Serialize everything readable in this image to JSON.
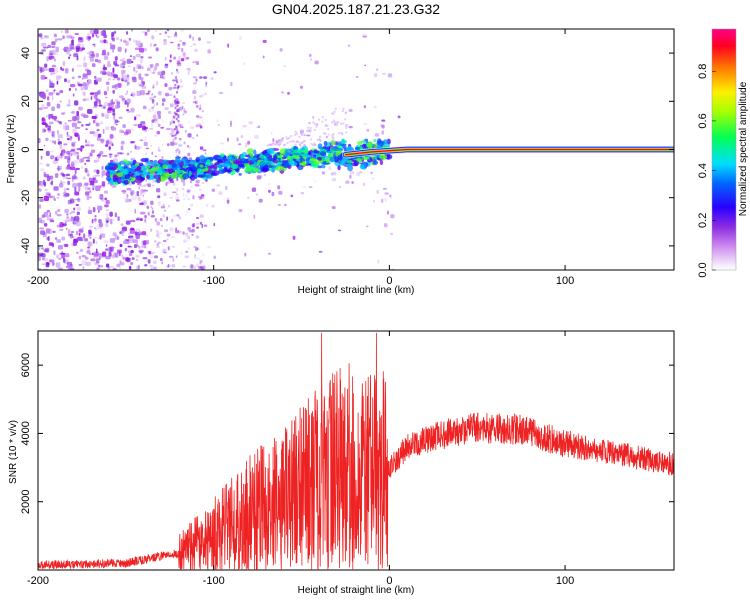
{
  "title": "GN04.2025.187.21.23.G32",
  "chart_data": [
    {
      "type": "heatmap",
      "xlabel": "Height of straight line (km)",
      "ylabel": "Frequency (Hz)",
      "xlim": [
        -200,
        162
      ],
      "ylim": [
        -50,
        50
      ],
      "xticks": [
        "-200",
        "-100",
        "0",
        "100"
      ],
      "yticks": [
        "-40",
        "-20",
        "0",
        "20",
        "40"
      ],
      "colorbar": {
        "label": "Normalized spectral amplitude",
        "range": [
          0,
          0.97
        ],
        "ticks": [
          "0.0",
          "0.2",
          "0.4",
          "0.6",
          "0.8"
        ],
        "colormap": [
          "#ffffff",
          "#e3c8f5",
          "#9933ff",
          "#0000ff",
          "#00ffff",
          "#00ff00",
          "#ffff00",
          "#ff8000",
          "#ff0000",
          "#ff0080"
        ]
      },
      "ridge": [
        {
          "x": -160,
          "freq": -10
        },
        {
          "x": -100,
          "freq": -7
        },
        {
          "x": -50,
          "freq": -3
        },
        {
          "x": -20,
          "freq": -2
        },
        {
          "x": 0,
          "freq": 0
        },
        {
          "x": 160,
          "freq": 0
        }
      ]
    },
    {
      "type": "line",
      "xlabel": "Height of straight line (km)",
      "ylabel": "SNR (10 * v/v)",
      "xlim": [
        -200,
        162
      ],
      "ylim": [
        0,
        7000
      ],
      "xticks": [
        "-200",
        "-100",
        "0",
        "100"
      ],
      "yticks": [
        "2000",
        "4000",
        "6000"
      ],
      "color": "#ee2222",
      "envelope": [
        {
          "x": -200,
          "y": 150
        },
        {
          "x": -150,
          "y": 200
        },
        {
          "x": -120,
          "y": 500
        },
        {
          "x": -100,
          "y": 1000
        },
        {
          "x": -80,
          "y": 1600
        },
        {
          "x": -60,
          "y": 2000
        },
        {
          "x": -40,
          "y": 2600
        },
        {
          "x": -30,
          "y": 3000
        },
        {
          "x": -15,
          "y": 2800
        },
        {
          "x": 0,
          "y": 3000
        },
        {
          "x": 10,
          "y": 3600
        },
        {
          "x": 25,
          "y": 3900
        },
        {
          "x": 50,
          "y": 4200
        },
        {
          "x": 75,
          "y": 4100
        },
        {
          "x": 100,
          "y": 3700
        },
        {
          "x": 130,
          "y": 3400
        },
        {
          "x": 162,
          "y": 3100
        }
      ]
    }
  ]
}
